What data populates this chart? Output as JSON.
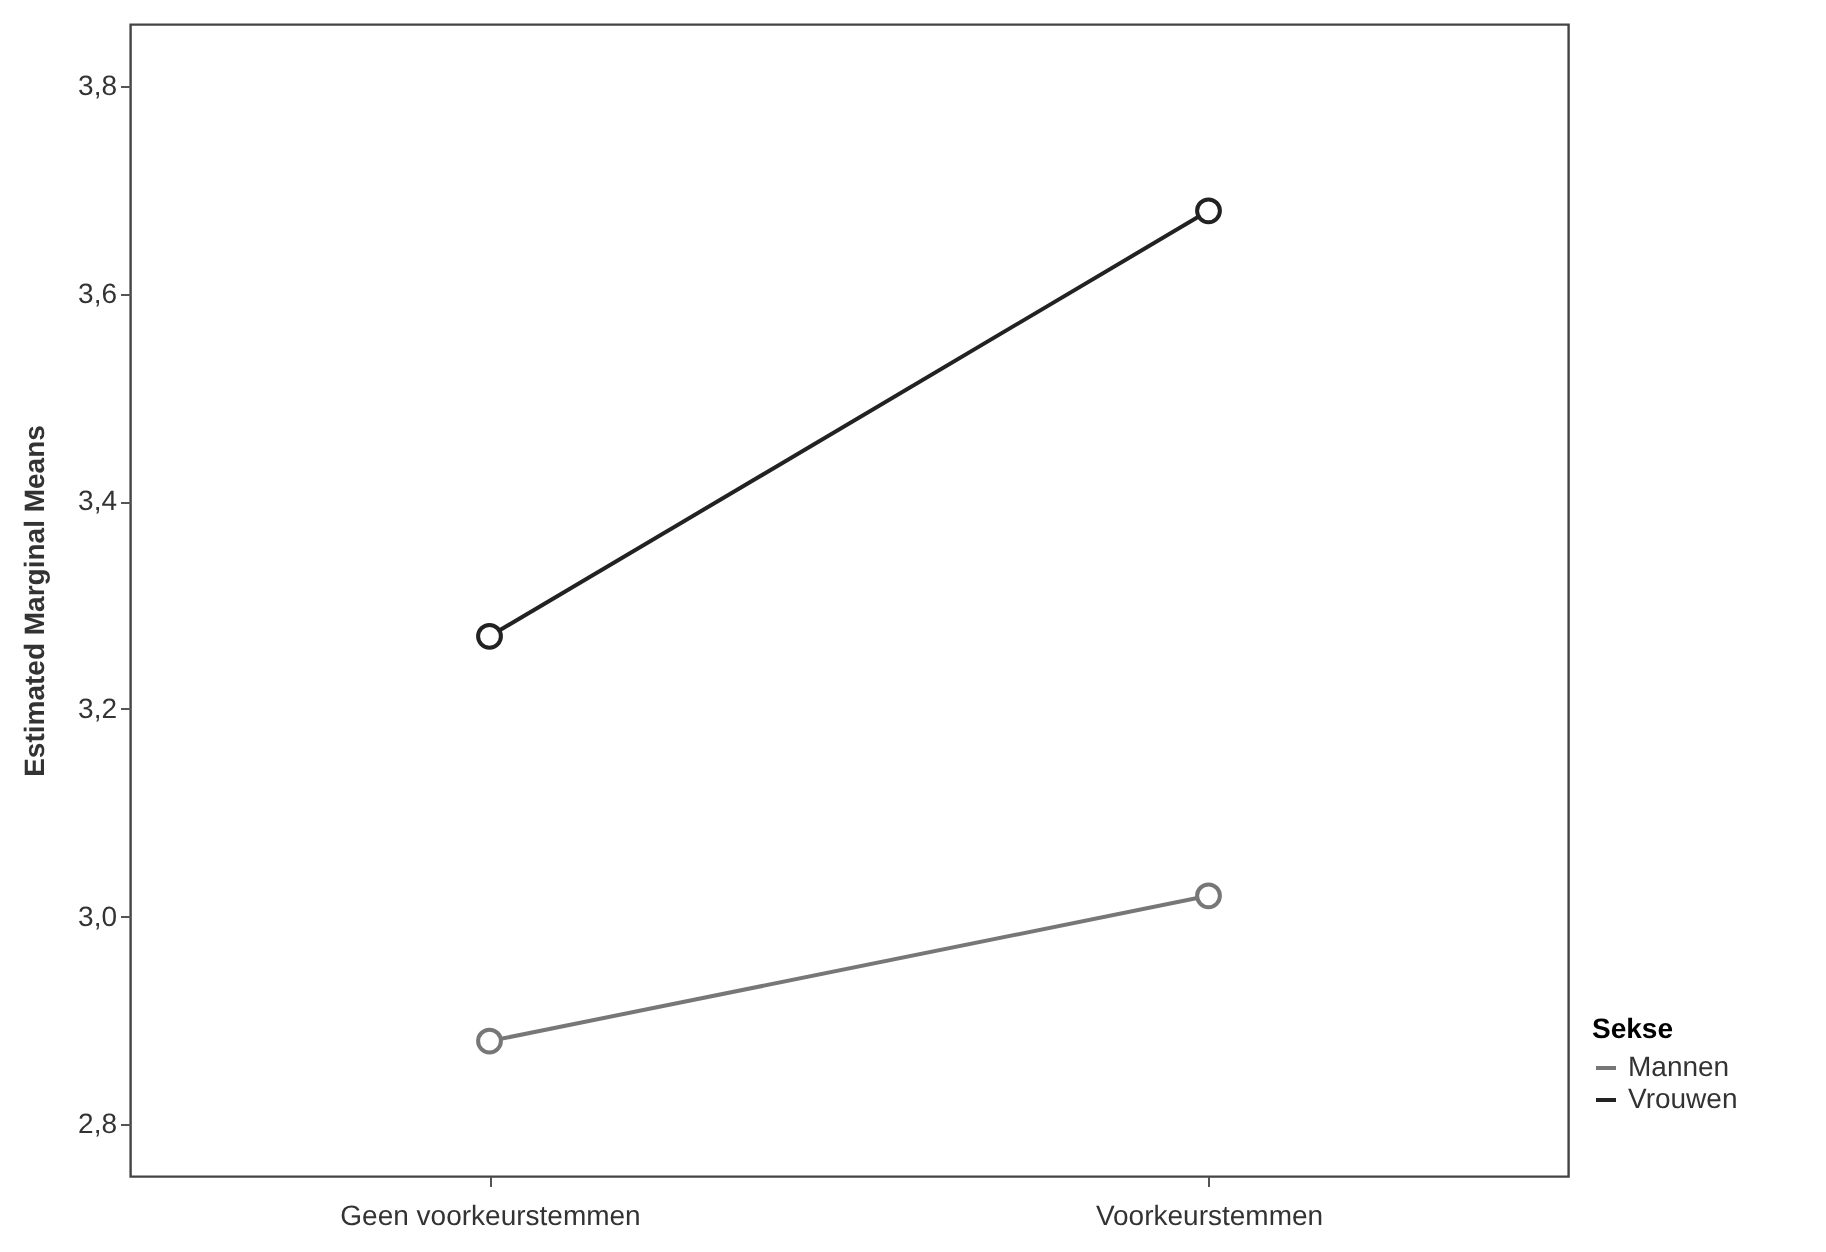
{
  "chart_data": {
    "type": "line",
    "ylabel": "Estimated Marginal Means",
    "legend_title": "Sekse",
    "categories": [
      "Geen voorkeurstemmen",
      "Voorkeurstemmen"
    ],
    "series": [
      {
        "name": "Mannen",
        "color": "#777777",
        "values": [
          2.88,
          3.02
        ]
      },
      {
        "name": "Vrouwen",
        "color": "#222222",
        "values": [
          3.27,
          3.68
        ]
      }
    ],
    "ylim": [
      2.75,
      3.86
    ],
    "yticks": [
      {
        "value": 2.8,
        "label": "2,8"
      },
      {
        "value": 3.0,
        "label": "3,0"
      },
      {
        "value": 3.2,
        "label": "3,2"
      },
      {
        "value": 3.4,
        "label": "3,4"
      },
      {
        "value": 3.6,
        "label": "3,6"
      },
      {
        "value": 3.8,
        "label": "3,8"
      }
    ],
    "grid": false,
    "legend": "bottom right",
    "marker": "circle",
    "line_style": "solid"
  }
}
